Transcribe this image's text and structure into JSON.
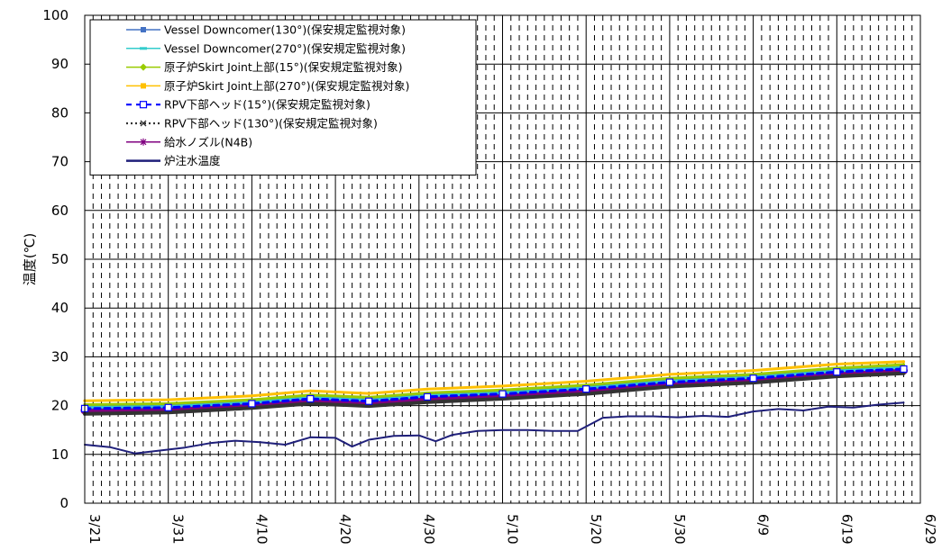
{
  "chart_data": {
    "type": "line",
    "ylabel": "温度(℃)",
    "xlabel": "",
    "ylim": [
      0,
      100
    ],
    "yticks": [
      0,
      10,
      20,
      30,
      40,
      50,
      60,
      70,
      80,
      90,
      100
    ],
    "xlim": [
      "3/21",
      "6/29"
    ],
    "xtick_labels": [
      "3/21",
      "3/31",
      "4/10",
      "4/20",
      "4/30",
      "5/10",
      "5/20",
      "5/30",
      "6/9",
      "6/19",
      "6/29"
    ],
    "grid": "major solid, minor dashed (daily)",
    "legend_position": "top-left",
    "series": [
      {
        "name": "Vessel Downcomer(130°)(保安規定監視対象)",
        "color": "#4472c4",
        "marker": "square",
        "x": [
          "3/21",
          "3/31",
          "4/10",
          "4/17",
          "4/24",
          "5/1",
          "5/10",
          "5/20",
          "5/30",
          "6/9",
          "6/19",
          "6/27"
        ],
        "values": [
          19.8,
          20.0,
          20.8,
          21.8,
          21.3,
          22.2,
          22.8,
          23.8,
          25.2,
          26.0,
          27.3,
          28.0
        ]
      },
      {
        "name": "Vessel Downcomer(270°)(保安規定監視対象)",
        "color": "#33cccc",
        "marker": "dash",
        "x": [
          "3/21",
          "3/31",
          "4/10",
          "4/17",
          "4/24",
          "5/1",
          "5/10",
          "5/20",
          "5/30",
          "6/9",
          "6/19",
          "6/27"
        ],
        "values": [
          19.6,
          19.8,
          20.6,
          21.6,
          21.1,
          22.0,
          22.6,
          23.6,
          25.0,
          25.8,
          27.1,
          27.8
        ]
      },
      {
        "name": "原子炉Skirt Joint上部(15°)(保安規定監視対象)",
        "color": "#99cc00",
        "marker": "diamond",
        "x": [
          "3/21",
          "3/31",
          "4/10",
          "4/17",
          "4/24",
          "5/1",
          "5/10",
          "5/20",
          "5/30",
          "6/9",
          "6/19",
          "6/27"
        ],
        "values": [
          20.2,
          20.4,
          21.2,
          22.2,
          21.7,
          22.6,
          23.2,
          24.2,
          25.6,
          26.4,
          27.7,
          28.4
        ]
      },
      {
        "name": "原子炉Skirt Joint上部(270°)(保安規定監視対象)",
        "color": "#ffc000",
        "marker": "square",
        "x": [
          "3/21",
          "3/31",
          "4/10",
          "4/17",
          "4/24",
          "5/1",
          "5/10",
          "5/20",
          "5/30",
          "6/9",
          "6/19",
          "6/27"
        ],
        "values": [
          21.0,
          21.2,
          22.0,
          23.0,
          22.5,
          23.4,
          24.0,
          25.0,
          26.4,
          27.2,
          28.5,
          29.0
        ]
      },
      {
        "name": "RPV下部ヘッド(15°)(保安規定監視対象)",
        "color": "#0000ff",
        "marker": "open-square",
        "dash": "6,5",
        "x": [
          "3/21",
          "3/31",
          "4/10",
          "4/17",
          "4/24",
          "5/1",
          "5/10",
          "5/20",
          "5/30",
          "6/9",
          "6/19",
          "6/27"
        ],
        "values": [
          19.4,
          19.6,
          20.4,
          21.4,
          20.9,
          21.8,
          22.4,
          23.4,
          24.8,
          25.6,
          26.9,
          27.5
        ]
      },
      {
        "name": "RPV下部ヘッド(130°)(保安規定監視対象)",
        "color": "#333333",
        "marker": "x",
        "dash": "2,3",
        "x": [
          "3/21",
          "3/31",
          "4/10",
          "4/17",
          "4/24",
          "5/1",
          "5/10",
          "5/20",
          "5/30",
          "6/9",
          "6/19",
          "6/27"
        ],
        "values": [
          18.3,
          18.6,
          19.5,
          20.4,
          19.9,
          20.7,
          21.4,
          22.4,
          23.9,
          24.7,
          26.0,
          26.6
        ]
      },
      {
        "name": "給水ノズル(N4B)",
        "color": "#800080",
        "marker": "asterisk",
        "x": [
          "3/21",
          "3/31",
          "4/10",
          "4/17",
          "4/24",
          "5/1",
          "5/10",
          "5/20",
          "5/30",
          "6/9",
          "6/19",
          "6/27"
        ],
        "values": [
          19.0,
          19.3,
          20.1,
          21.1,
          20.6,
          21.4,
          22.1,
          23.1,
          24.5,
          25.3,
          26.6,
          27.2
        ]
      },
      {
        "name": "炉注水温度",
        "color": "#1f1f7a",
        "marker": "none",
        "x": [
          "3/21",
          "3/24",
          "3/27",
          "3/30",
          "4/2",
          "4/5",
          "4/8",
          "4/11",
          "4/14",
          "4/17",
          "4/20",
          "4/22",
          "4/24",
          "4/27",
          "4/30",
          "5/2",
          "5/4",
          "5/7",
          "5/10",
          "5/13",
          "5/16",
          "5/19",
          "5/22",
          "5/25",
          "5/28",
          "5/31",
          "6/3",
          "6/6",
          "6/9",
          "6/12",
          "6/15",
          "6/18",
          "6/21",
          "6/24",
          "6/27"
        ],
        "values": [
          12.0,
          11.5,
          10.2,
          10.8,
          11.4,
          12.3,
          12.8,
          12.5,
          12.0,
          13.5,
          13.4,
          11.6,
          13.0,
          13.8,
          13.9,
          12.7,
          14.0,
          14.8,
          15.0,
          15.0,
          14.8,
          14.8,
          17.5,
          17.8,
          17.8,
          17.6,
          17.9,
          17.7,
          18.8,
          19.3,
          19.0,
          19.8,
          19.6,
          20.2,
          20.6
        ]
      }
    ]
  }
}
